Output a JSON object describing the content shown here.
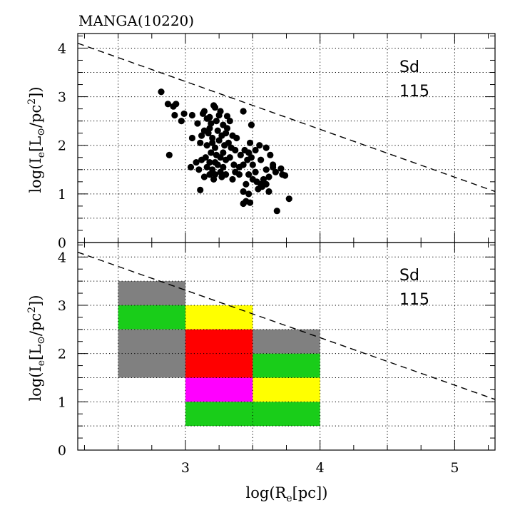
{
  "chart_data": {
    "type": "scatter",
    "title": "MANGA(10220)",
    "xlabel": "log(R_e[pc])",
    "xlim": [
      2.2,
      5.3
    ],
    "xticks": [
      "3",
      "4",
      "5"
    ],
    "yticks": [
      "0",
      "1",
      "2",
      "3",
      "4"
    ],
    "ylabel": "log(I_e[L_⊙/pc²])",
    "colors": {
      "gray": "#808080",
      "green": "#19cd19",
      "yellow": "#ffff00",
      "red": "#ff0000",
      "magenta": "#ff00ff",
      "points": "#000000"
    },
    "panels": [
      {
        "name": "scatter",
        "ylim": [
          0,
          4.3
        ],
        "annotation": [
          "Sd",
          "115"
        ],
        "dashed_line": {
          "x": [
            2.2,
            5.3
          ],
          "y": [
            4.1,
            1.05
          ]
        },
        "points": [
          [
            2.82,
            3.1
          ],
          [
            2.87,
            2.85
          ],
          [
            2.91,
            2.8
          ],
          [
            2.93,
            2.85
          ],
          [
            2.92,
            2.62
          ],
          [
            2.97,
            2.5
          ],
          [
            2.99,
            2.65
          ],
          [
            3.05,
            2.62
          ],
          [
            3.09,
            2.45
          ],
          [
            3.13,
            2.65
          ],
          [
            3.14,
            2.7
          ],
          [
            3.16,
            2.55
          ],
          [
            3.18,
            2.58
          ],
          [
            3.21,
            2.82
          ],
          [
            3.22,
            2.78
          ],
          [
            3.26,
            2.7
          ],
          [
            3.19,
            2.45
          ],
          [
            3.23,
            2.5
          ],
          [
            3.25,
            2.62
          ],
          [
            3.28,
            2.42
          ],
          [
            3.31,
            2.35
          ],
          [
            3.33,
            2.5
          ],
          [
            3.18,
            2.35
          ],
          [
            3.14,
            2.3
          ],
          [
            3.12,
            2.2
          ],
          [
            3.17,
            2.25
          ],
          [
            3.2,
            2.15
          ],
          [
            3.24,
            2.3
          ],
          [
            3.27,
            2.2
          ],
          [
            3.3,
            2.25
          ],
          [
            3.35,
            2.2
          ],
          [
            3.38,
            2.15
          ],
          [
            3.05,
            2.15
          ],
          [
            3.11,
            2.05
          ],
          [
            3.16,
            2.0
          ],
          [
            3.2,
            2.05
          ],
          [
            3.22,
            1.95
          ],
          [
            3.25,
            2.1
          ],
          [
            3.29,
            2.0
          ],
          [
            3.32,
            2.05
          ],
          [
            3.34,
            1.95
          ],
          [
            3.37,
            1.9
          ],
          [
            3.28,
            1.85
          ],
          [
            3.26,
            1.75
          ],
          [
            3.23,
            1.8
          ],
          [
            3.19,
            1.85
          ],
          [
            3.15,
            1.75
          ],
          [
            3.12,
            1.7
          ],
          [
            3.08,
            1.65
          ],
          [
            3.18,
            1.65
          ],
          [
            3.22,
            1.65
          ],
          [
            3.3,
            1.7
          ],
          [
            3.33,
            1.75
          ],
          [
            3.36,
            1.6
          ],
          [
            3.28,
            1.55
          ],
          [
            3.24,
            1.6
          ],
          [
            3.2,
            1.5
          ],
          [
            3.16,
            1.55
          ],
          [
            3.26,
            1.45
          ],
          [
            3.3,
            1.4
          ],
          [
            3.27,
            1.35
          ],
          [
            3.22,
            1.4
          ],
          [
            3.18,
            1.4
          ],
          [
            3.14,
            1.35
          ],
          [
            3.1,
            1.5
          ],
          [
            3.04,
            1.55
          ],
          [
            3.37,
            1.45
          ],
          [
            3.4,
            1.55
          ],
          [
            3.43,
            1.6
          ],
          [
            3.46,
            1.7
          ],
          [
            3.49,
            1.75
          ],
          [
            3.47,
            1.85
          ],
          [
            3.44,
            1.9
          ],
          [
            3.41,
            1.8
          ],
          [
            3.48,
            2.05
          ],
          [
            3.52,
            1.9
          ],
          [
            3.55,
            2.0
          ],
          [
            3.5,
            1.6
          ],
          [
            3.52,
            1.45
          ],
          [
            3.47,
            1.4
          ],
          [
            3.5,
            1.3
          ],
          [
            3.45,
            1.2
          ],
          [
            3.43,
            1.05
          ],
          [
            3.47,
            1.0
          ],
          [
            3.45,
            0.85
          ],
          [
            3.43,
            0.8
          ],
          [
            3.48,
            0.82
          ],
          [
            3.54,
            1.1
          ],
          [
            3.56,
            1.2
          ],
          [
            3.57,
            1.15
          ],
          [
            3.6,
            1.2
          ],
          [
            3.58,
            1.3
          ],
          [
            3.6,
            1.5
          ],
          [
            3.62,
            1.35
          ],
          [
            3.65,
            1.55
          ],
          [
            3.67,
            1.45
          ],
          [
            3.72,
            1.4
          ],
          [
            3.74,
            1.38
          ],
          [
            3.71,
            1.52
          ],
          [
            3.68,
            0.65
          ],
          [
            3.77,
            0.9
          ],
          [
            3.62,
            1.05
          ],
          [
            3.53,
            1.25
          ],
          [
            3.11,
            1.08
          ],
          [
            2.88,
            1.8
          ],
          [
            3.35,
            1.3
          ],
          [
            3.4,
            1.4
          ],
          [
            3.56,
            1.7
          ],
          [
            3.6,
            1.95
          ],
          [
            3.63,
            1.8
          ],
          [
            3.65,
            1.6
          ],
          [
            3.21,
            1.3
          ],
          [
            3.31,
            2.6
          ],
          [
            3.43,
            2.7
          ],
          [
            3.49,
            2.42
          ]
        ]
      },
      {
        "name": "grid",
        "ylim": [
          0,
          4.3
        ],
        "annotation": [
          "Sd",
          "115"
        ],
        "dashed_line": {
          "x": [
            2.2,
            5.3
          ],
          "y": [
            4.1,
            1.05
          ]
        },
        "cells": [
          {
            "x0": 2.5,
            "x1": 3.0,
            "y0": 3.0,
            "y1": 3.5,
            "color": "gray"
          },
          {
            "x0": 2.5,
            "x1": 3.0,
            "y0": 2.5,
            "y1": 3.0,
            "color": "green"
          },
          {
            "x0": 2.5,
            "x1": 3.0,
            "y0": 1.5,
            "y1": 2.5,
            "color": "gray"
          },
          {
            "x0": 3.0,
            "x1": 3.5,
            "y0": 2.5,
            "y1": 3.0,
            "color": "yellow"
          },
          {
            "x0": 3.0,
            "x1": 3.5,
            "y0": 1.5,
            "y1": 2.5,
            "color": "red"
          },
          {
            "x0": 3.0,
            "x1": 3.5,
            "y0": 1.0,
            "y1": 1.5,
            "color": "magenta"
          },
          {
            "x0": 3.0,
            "x1": 4.0,
            "y0": 0.5,
            "y1": 1.0,
            "color": "green"
          },
          {
            "x0": 3.5,
            "x1": 4.0,
            "y0": 2.0,
            "y1": 2.5,
            "color": "gray"
          },
          {
            "x0": 3.5,
            "x1": 4.0,
            "y0": 1.5,
            "y1": 2.0,
            "color": "green"
          },
          {
            "x0": 3.5,
            "x1": 4.0,
            "y0": 1.0,
            "y1": 1.5,
            "color": "yellow"
          }
        ]
      }
    ]
  }
}
